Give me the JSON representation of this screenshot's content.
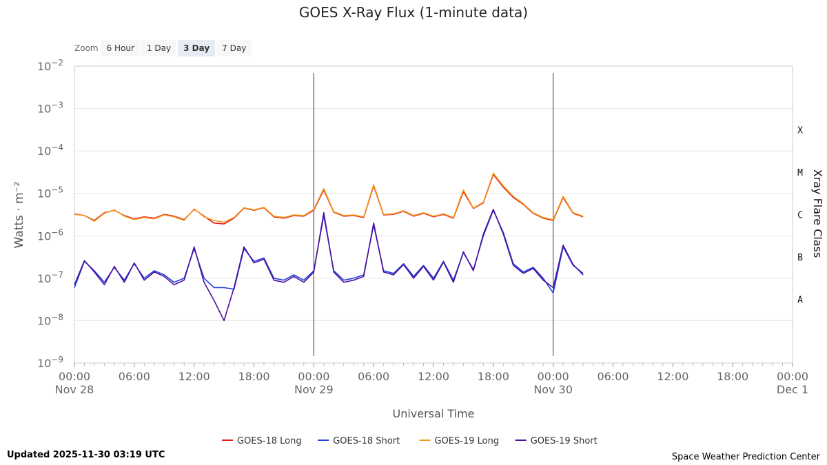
{
  "title": "GOES X-Ray Flux (1-minute data)",
  "zoom": {
    "label": "Zoom",
    "buttons": [
      "6 Hour",
      "1 Day",
      "3 Day",
      "7 Day"
    ],
    "active": "3 Day"
  },
  "footer": {
    "updated": "Updated 2025-11-30 03:19 UTC",
    "credit": "Space Weather Prediction Center"
  },
  "colors": {
    "goes18_long": "#e41a1c",
    "goes18_short": "#1f3fd9",
    "goes19_long": "#f29b1d",
    "goes19_short": "#4b0f9e"
  },
  "chart_data": {
    "type": "line",
    "title": "GOES X-Ray Flux (1-minute data)",
    "xlabel": "Universal Time",
    "ylabel": "Watts · m⁻²",
    "y2label": "Xray Flare Class",
    "yscale": "log",
    "ylim": [
      1e-09,
      0.01
    ],
    "xlim": [
      "2025-11-28 00:00",
      "2025-12-01 00:00"
    ],
    "y_ticks": [
      {
        "base": "10",
        "exp": "−2"
      },
      {
        "base": "10",
        "exp": "−3"
      },
      {
        "base": "10",
        "exp": "−4"
      },
      {
        "base": "10",
        "exp": "−5"
      },
      {
        "base": "10",
        "exp": "−6"
      },
      {
        "base": "10",
        "exp": "−7"
      },
      {
        "base": "10",
        "exp": "−8"
      },
      {
        "base": "10",
        "exp": "−9"
      }
    ],
    "x_ticks": [
      {
        "time": "00:00",
        "date": "Nov 28"
      },
      {
        "time": "06:00",
        "date": ""
      },
      {
        "time": "12:00",
        "date": ""
      },
      {
        "time": "18:00",
        "date": ""
      },
      {
        "time": "00:00",
        "date": "Nov 29"
      },
      {
        "time": "06:00",
        "date": ""
      },
      {
        "time": "12:00",
        "date": ""
      },
      {
        "time": "18:00",
        "date": ""
      },
      {
        "time": "00:00",
        "date": "Nov 30"
      },
      {
        "time": "06:00",
        "date": ""
      },
      {
        "time": "12:00",
        "date": ""
      },
      {
        "time": "18:00",
        "date": ""
      },
      {
        "time": "00:00",
        "date": "Dec 1"
      }
    ],
    "flare_classes": [
      "X",
      "M",
      "C",
      "B",
      "A"
    ],
    "grid": true,
    "legend_position": "bottom-center",
    "series": [
      {
        "name": "GOES-18 Long",
        "color": "#e41a1c",
        "x": [
          "2025-11-28 00:00",
          "2025-11-28 01:00",
          "2025-11-28 02:00",
          "2025-11-28 03:00",
          "2025-11-28 04:00",
          "2025-11-28 05:00",
          "2025-11-28 06:00",
          "2025-11-28 07:00",
          "2025-11-28 08:00",
          "2025-11-28 09:00",
          "2025-11-28 10:00",
          "2025-11-28 11:00",
          "2025-11-28 12:00",
          "2025-11-28 13:00",
          "2025-11-28 14:00",
          "2025-11-28 15:00",
          "2025-11-28 16:00",
          "2025-11-28 17:00",
          "2025-11-28 18:00",
          "2025-11-28 19:00",
          "2025-11-28 20:00",
          "2025-11-28 21:00",
          "2025-11-28 22:00",
          "2025-11-28 23:00",
          "2025-11-29 00:00",
          "2025-11-29 01:00",
          "2025-11-29 02:00",
          "2025-11-29 03:00",
          "2025-11-29 04:00",
          "2025-11-29 05:00",
          "2025-11-29 06:00",
          "2025-11-29 07:00",
          "2025-11-29 08:00",
          "2025-11-29 09:00",
          "2025-11-29 10:00",
          "2025-11-29 11:00",
          "2025-11-29 12:00",
          "2025-11-29 13:00",
          "2025-11-29 14:00",
          "2025-11-29 15:00",
          "2025-11-29 16:00",
          "2025-11-29 17:00",
          "2025-11-29 18:00",
          "2025-11-29 19:00",
          "2025-11-29 20:00",
          "2025-11-29 21:00",
          "2025-11-29 22:00",
          "2025-11-29 23:00",
          "2025-11-30 00:00",
          "2025-11-30 01:00",
          "2025-11-30 02:00",
          "2025-11-30 03:00"
        ],
        "values": [
          3.3e-06,
          3e-06,
          2.3e-06,
          3.5e-06,
          4e-06,
          3e-06,
          2.5e-06,
          2.8e-06,
          2.6e-06,
          3.2e-06,
          2.9e-06,
          2.4e-06,
          4.2e-06,
          2.9e-06,
          2e-06,
          1.9e-06,
          2.6e-06,
          4.5e-06,
          4e-06,
          4.6e-06,
          2.8e-06,
          2.6e-06,
          3e-06,
          2.9e-06,
          4e-06,
          1.2e-05,
          3.6e-06,
          2.9e-06,
          3e-06,
          2.7e-06,
          1.5e-05,
          3.1e-06,
          3.2e-06,
          3.8e-06,
          2.9e-06,
          3.4e-06,
          2.8e-06,
          3.2e-06,
          2.6e-06,
          1.1e-05,
          4.4e-06,
          6e-06,
          2.8e-05,
          1.4e-05,
          8e-06,
          5.5e-06,
          3.4e-06,
          2.6e-06,
          2.3e-06,
          8e-06,
          3.4e-06,
          2.8e-06
        ]
      },
      {
        "name": "GOES-18 Short",
        "color": "#1f3fd9",
        "x": [
          "2025-11-28 00:00",
          "2025-11-28 01:00",
          "2025-11-28 02:00",
          "2025-11-28 03:00",
          "2025-11-28 04:00",
          "2025-11-28 05:00",
          "2025-11-28 06:00",
          "2025-11-28 07:00",
          "2025-11-28 08:00",
          "2025-11-28 09:00",
          "2025-11-28 10:00",
          "2025-11-28 11:00",
          "2025-11-28 12:00",
          "2025-11-28 13:00",
          "2025-11-28 14:00",
          "2025-11-28 15:00",
          "2025-11-28 16:00",
          "2025-11-28 17:00",
          "2025-11-28 18:00",
          "2025-11-28 19:00",
          "2025-11-28 20:00",
          "2025-11-28 21:00",
          "2025-11-28 22:00",
          "2025-11-28 23:00",
          "2025-11-29 00:00",
          "2025-11-29 01:00",
          "2025-11-29 02:00",
          "2025-11-29 03:00",
          "2025-11-29 04:00",
          "2025-11-29 05:00",
          "2025-11-29 06:00",
          "2025-11-29 07:00",
          "2025-11-29 08:00",
          "2025-11-29 09:00",
          "2025-11-29 10:00",
          "2025-11-29 11:00",
          "2025-11-29 12:00",
          "2025-11-29 13:00",
          "2025-11-29 14:00",
          "2025-11-29 15:00",
          "2025-11-29 16:00",
          "2025-11-29 17:00",
          "2025-11-29 18:00",
          "2025-11-29 19:00",
          "2025-11-29 20:00",
          "2025-11-29 21:00",
          "2025-11-29 22:00",
          "2025-11-29 23:00",
          "2025-11-30 00:00",
          "2025-11-30 01:00",
          "2025-11-30 02:00",
          "2025-11-30 03:00"
        ],
        "values": [
          6e-08,
          2.5e-07,
          1.5e-07,
          8e-08,
          1.8e-07,
          9e-08,
          2.2e-07,
          1e-07,
          1.5e-07,
          1.2e-07,
          8e-08,
          1e-07,
          5e-07,
          1e-07,
          6e-08,
          6e-08,
          5.5e-08,
          5e-07,
          2.5e-07,
          3e-07,
          1e-07,
          9e-08,
          1.2e-07,
          9e-08,
          1.5e-07,
          3e-06,
          1.5e-07,
          9e-08,
          1e-07,
          1.2e-07,
          1.8e-06,
          1.5e-07,
          1.3e-07,
          2.2e-07,
          1.1e-07,
          2e-07,
          1e-07,
          2.5e-07,
          9e-08,
          4e-07,
          1.6e-07,
          1e-06,
          4e-06,
          1.2e-06,
          2.2e-07,
          1.4e-07,
          1.8e-07,
          1e-07,
          4.5e-08,
          5.5e-07,
          2e-07,
          1.3e-07
        ]
      },
      {
        "name": "GOES-19 Long",
        "color": "#f29b1d",
        "x": [
          "2025-11-28 00:00",
          "2025-11-28 01:00",
          "2025-11-28 02:00",
          "2025-11-28 03:00",
          "2025-11-28 04:00",
          "2025-11-28 05:00",
          "2025-11-28 06:00",
          "2025-11-28 07:00",
          "2025-11-28 08:00",
          "2025-11-28 09:00",
          "2025-11-28 10:00",
          "2025-11-28 11:00",
          "2025-11-28 12:00",
          "2025-11-28 13:00",
          "2025-11-28 14:00",
          "2025-11-28 15:00",
          "2025-11-28 16:00",
          "2025-11-28 17:00",
          "2025-11-28 18:00",
          "2025-11-28 19:00",
          "2025-11-28 20:00",
          "2025-11-28 21:00",
          "2025-11-28 22:00",
          "2025-11-28 23:00",
          "2025-11-29 00:00",
          "2025-11-29 01:00",
          "2025-11-29 02:00",
          "2025-11-29 03:00",
          "2025-11-29 04:00",
          "2025-11-29 05:00",
          "2025-11-29 06:00",
          "2025-11-29 07:00",
          "2025-11-29 08:00",
          "2025-11-29 09:00",
          "2025-11-29 10:00",
          "2025-11-29 11:00",
          "2025-11-29 12:00",
          "2025-11-29 13:00",
          "2025-11-29 14:00",
          "2025-11-29 15:00",
          "2025-11-29 16:00",
          "2025-11-29 17:00",
          "2025-11-29 18:00",
          "2025-11-29 19:00",
          "2025-11-29 20:00",
          "2025-11-29 21:00",
          "2025-11-29 22:00",
          "2025-11-29 23:00",
          "2025-11-30 00:00",
          "2025-11-30 01:00",
          "2025-11-30 02:00",
          "2025-11-30 03:00"
        ],
        "values": [
          3.2e-06,
          3e-06,
          2.2e-06,
          3.4e-06,
          4.1e-06,
          2.9e-06,
          2.4e-06,
          2.7e-06,
          2.5e-06,
          3.1e-06,
          2.8e-06,
          2.3e-06,
          4.3e-06,
          2.8e-06,
          2.3e-06,
          2.1e-06,
          2.7e-06,
          4.6e-06,
          4.1e-06,
          4.7e-06,
          2.9e-06,
          2.7e-06,
          3.1e-06,
          3e-06,
          4.2e-06,
          1.3e-05,
          3.7e-06,
          3e-06,
          3.1e-06,
          2.8e-06,
          1.6e-05,
          3.2e-06,
          3.3e-06,
          3.9e-06,
          3e-06,
          3.5e-06,
          2.9e-06,
          3.3e-06,
          2.7e-06,
          1.2e-05,
          4.5e-06,
          6.2e-06,
          3e-05,
          1.5e-05,
          8.5e-06,
          5.7e-06,
          3.5e-06,
          2.7e-06,
          2.4e-06,
          8.5e-06,
          3.5e-06,
          2.9e-06
        ]
      },
      {
        "name": "GOES-19 Short",
        "color": "#4b0f9e",
        "x": [
          "2025-11-28 00:00",
          "2025-11-28 01:00",
          "2025-11-28 02:00",
          "2025-11-28 03:00",
          "2025-11-28 04:00",
          "2025-11-28 05:00",
          "2025-11-28 06:00",
          "2025-11-28 07:00",
          "2025-11-28 08:00",
          "2025-11-28 09:00",
          "2025-11-28 10:00",
          "2025-11-28 11:00",
          "2025-11-28 12:00",
          "2025-11-28 13:00",
          "2025-11-28 14:00",
          "2025-11-28 15:00",
          "2025-11-28 16:00",
          "2025-11-28 17:00",
          "2025-11-28 18:00",
          "2025-11-28 19:00",
          "2025-11-28 20:00",
          "2025-11-28 21:00",
          "2025-11-28 22:00",
          "2025-11-28 23:00",
          "2025-11-29 00:00",
          "2025-11-29 01:00",
          "2025-11-29 02:00",
          "2025-11-29 03:00",
          "2025-11-29 04:00",
          "2025-11-29 05:00",
          "2025-11-29 06:00",
          "2025-11-29 07:00",
          "2025-11-29 08:00",
          "2025-11-29 09:00",
          "2025-11-29 10:00",
          "2025-11-29 11:00",
          "2025-11-29 12:00",
          "2025-11-29 13:00",
          "2025-11-29 14:00",
          "2025-11-29 15:00",
          "2025-11-29 16:00",
          "2025-11-29 17:00",
          "2025-11-29 18:00",
          "2025-11-29 19:00",
          "2025-11-29 20:00",
          "2025-11-29 21:00",
          "2025-11-29 22:00",
          "2025-11-29 23:00",
          "2025-11-30 00:00",
          "2025-11-30 01:00",
          "2025-11-30 02:00",
          "2025-11-30 03:00"
        ],
        "values": [
          7e-08,
          2.6e-07,
          1.4e-07,
          7e-08,
          1.9e-07,
          8e-08,
          2.3e-07,
          9e-08,
          1.4e-07,
          1.1e-07,
          7e-08,
          9e-08,
          5.5e-07,
          8e-08,
          3e-08,
          1e-08,
          6e-08,
          5.5e-07,
          2.3e-07,
          2.8e-07,
          9e-08,
          8e-08,
          1.1e-07,
          8e-08,
          1.4e-07,
          3.5e-06,
          1.4e-07,
          8e-08,
          9e-08,
          1.1e-07,
          2e-06,
          1.4e-07,
          1.2e-07,
          2.1e-07,
          1e-07,
          1.9e-07,
          9e-08,
          2.4e-07,
          8e-08,
          4.2e-07,
          1.5e-07,
          1.1e-06,
          4.2e-06,
          1.1e-06,
          2e-07,
          1.3e-07,
          1.7e-07,
          9e-08,
          6e-08,
          6e-07,
          2.1e-07,
          1.2e-07
        ]
      }
    ]
  }
}
